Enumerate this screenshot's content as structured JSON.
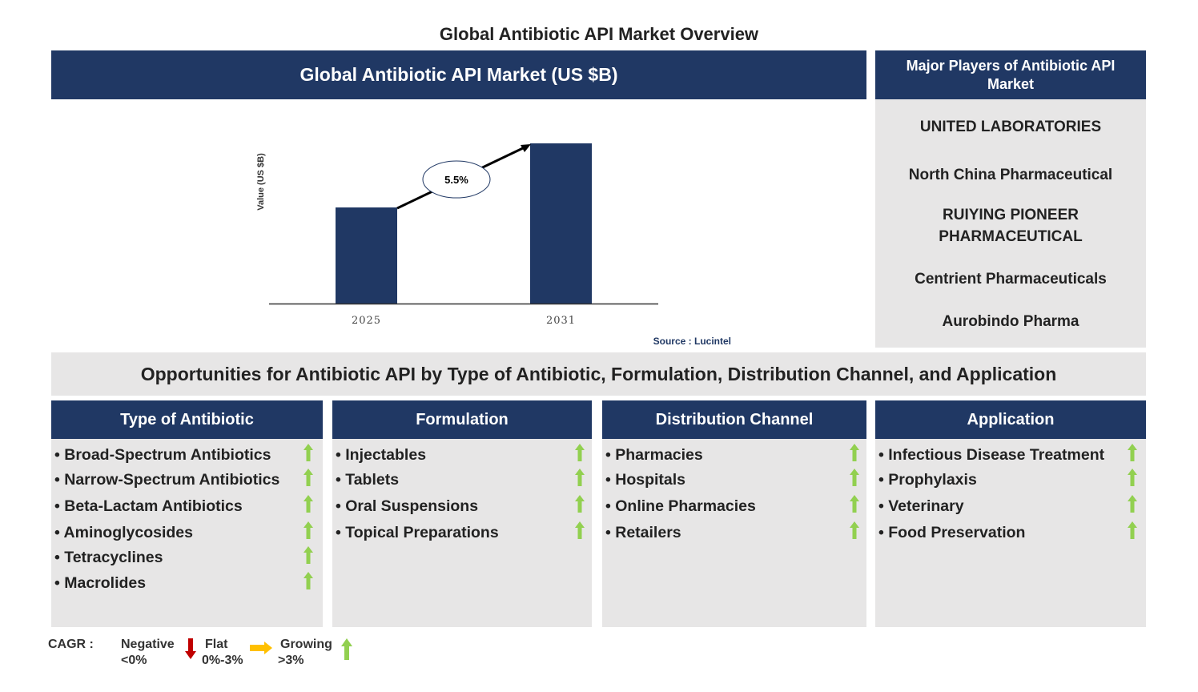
{
  "title": "Global Antibiotic API Market Overview",
  "market_header": "Global Antibiotic API Market (US $B)",
  "players_header": "Major Players of Antibiotic API Market",
  "players": [
    "UNITED LABORATORIES",
    "North China Pharmaceutical",
    "RUIYING PIONEER PHARMACEUTICAL",
    "Centrient Pharmaceuticals",
    "Aurobindo Pharma"
  ],
  "opportunities_header": "Opportunities for Antibiotic API by Type of Antibiotic, Formulation, Distribution Channel, and Application",
  "columns": [
    {
      "title": "Type of Antibiotic",
      "items": [
        "Broad-Spectrum Antibiotics",
        "Narrow-Spectrum Antibiotics",
        "Beta-Lactam Antibiotics",
        "Aminoglycosides",
        "Tetracyclines",
        "Macrolides"
      ]
    },
    {
      "title": "Formulation",
      "items": [
        "Injectables",
        "Tablets",
        "Oral Suspensions",
        "Topical Preparations"
      ]
    },
    {
      "title": "Distribution Channel",
      "items": [
        "Pharmacies",
        "Hospitals",
        "Online Pharmacies",
        "Retailers"
      ]
    },
    {
      "title": "Application",
      "items": [
        "Infectious Disease Treatment",
        "Prophylaxis",
        "Veterinary",
        "Food Preservation"
      ]
    }
  ],
  "legend": {
    "label": "CAGR :",
    "negative": "Negative",
    "negative_range": "<0%",
    "flat": "Flat",
    "flat_range": "0%-3%",
    "growing": "Growing",
    "growing_range": ">3%"
  },
  "colors": {
    "navy": "#203864",
    "grey": "#e7e6e6",
    "green": "#92d050",
    "red": "#c00000",
    "amber": "#ffc000"
  },
  "chart_data": {
    "type": "bar",
    "title": "Global Antibiotic API Market (US $B)",
    "categories": [
      "2025",
      "2031"
    ],
    "values": [
      60,
      100
    ],
    "values_note": "relative",
    "ylabel": "Value (US $B)",
    "xlabel": "",
    "annotation": "5.5%",
    "source": "Source : Lucintel"
  }
}
